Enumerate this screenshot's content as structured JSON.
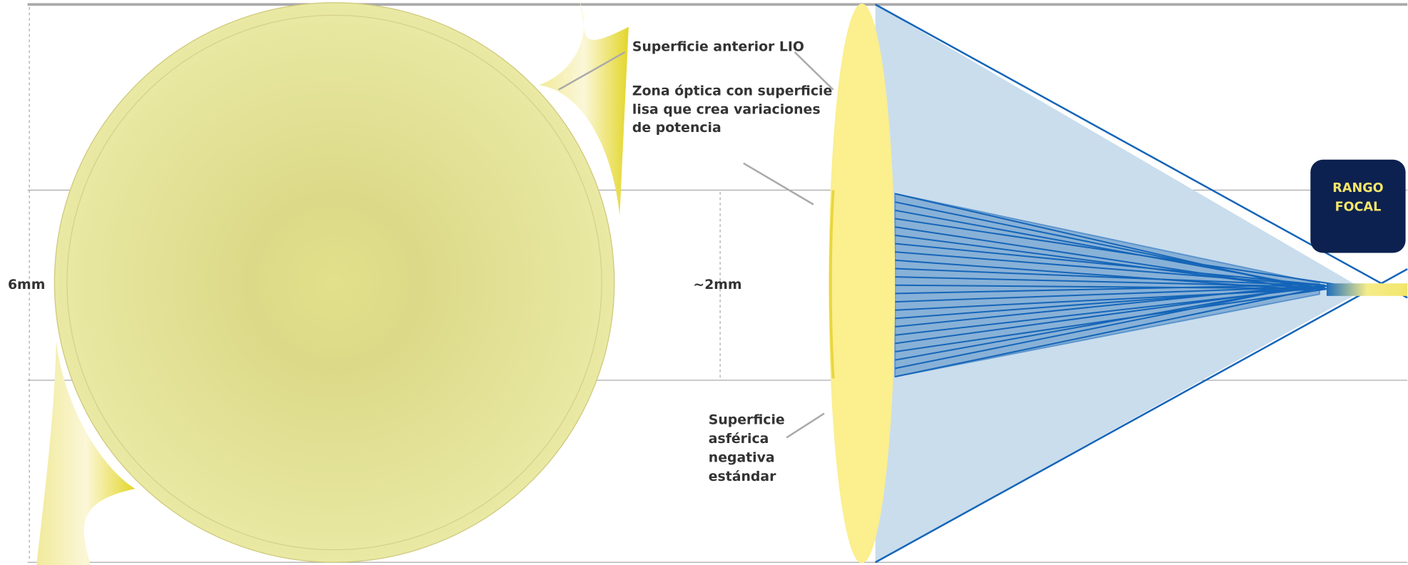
{
  "labels": {
    "anterior_surface": "Superficie anterior LIO",
    "optic_zone": [
      "Zona óptica con superficie",
      "lisa que crea variaciones",
      "de potencia"
    ],
    "aspheric_surface": [
      "Superficie",
      "asférica",
      "negativa",
      "estándar"
    ],
    "diameter_full": "6mm",
    "diameter_zone": "~2mm",
    "focal_range": [
      "RANGO",
      "FOCAL"
    ]
  }
}
